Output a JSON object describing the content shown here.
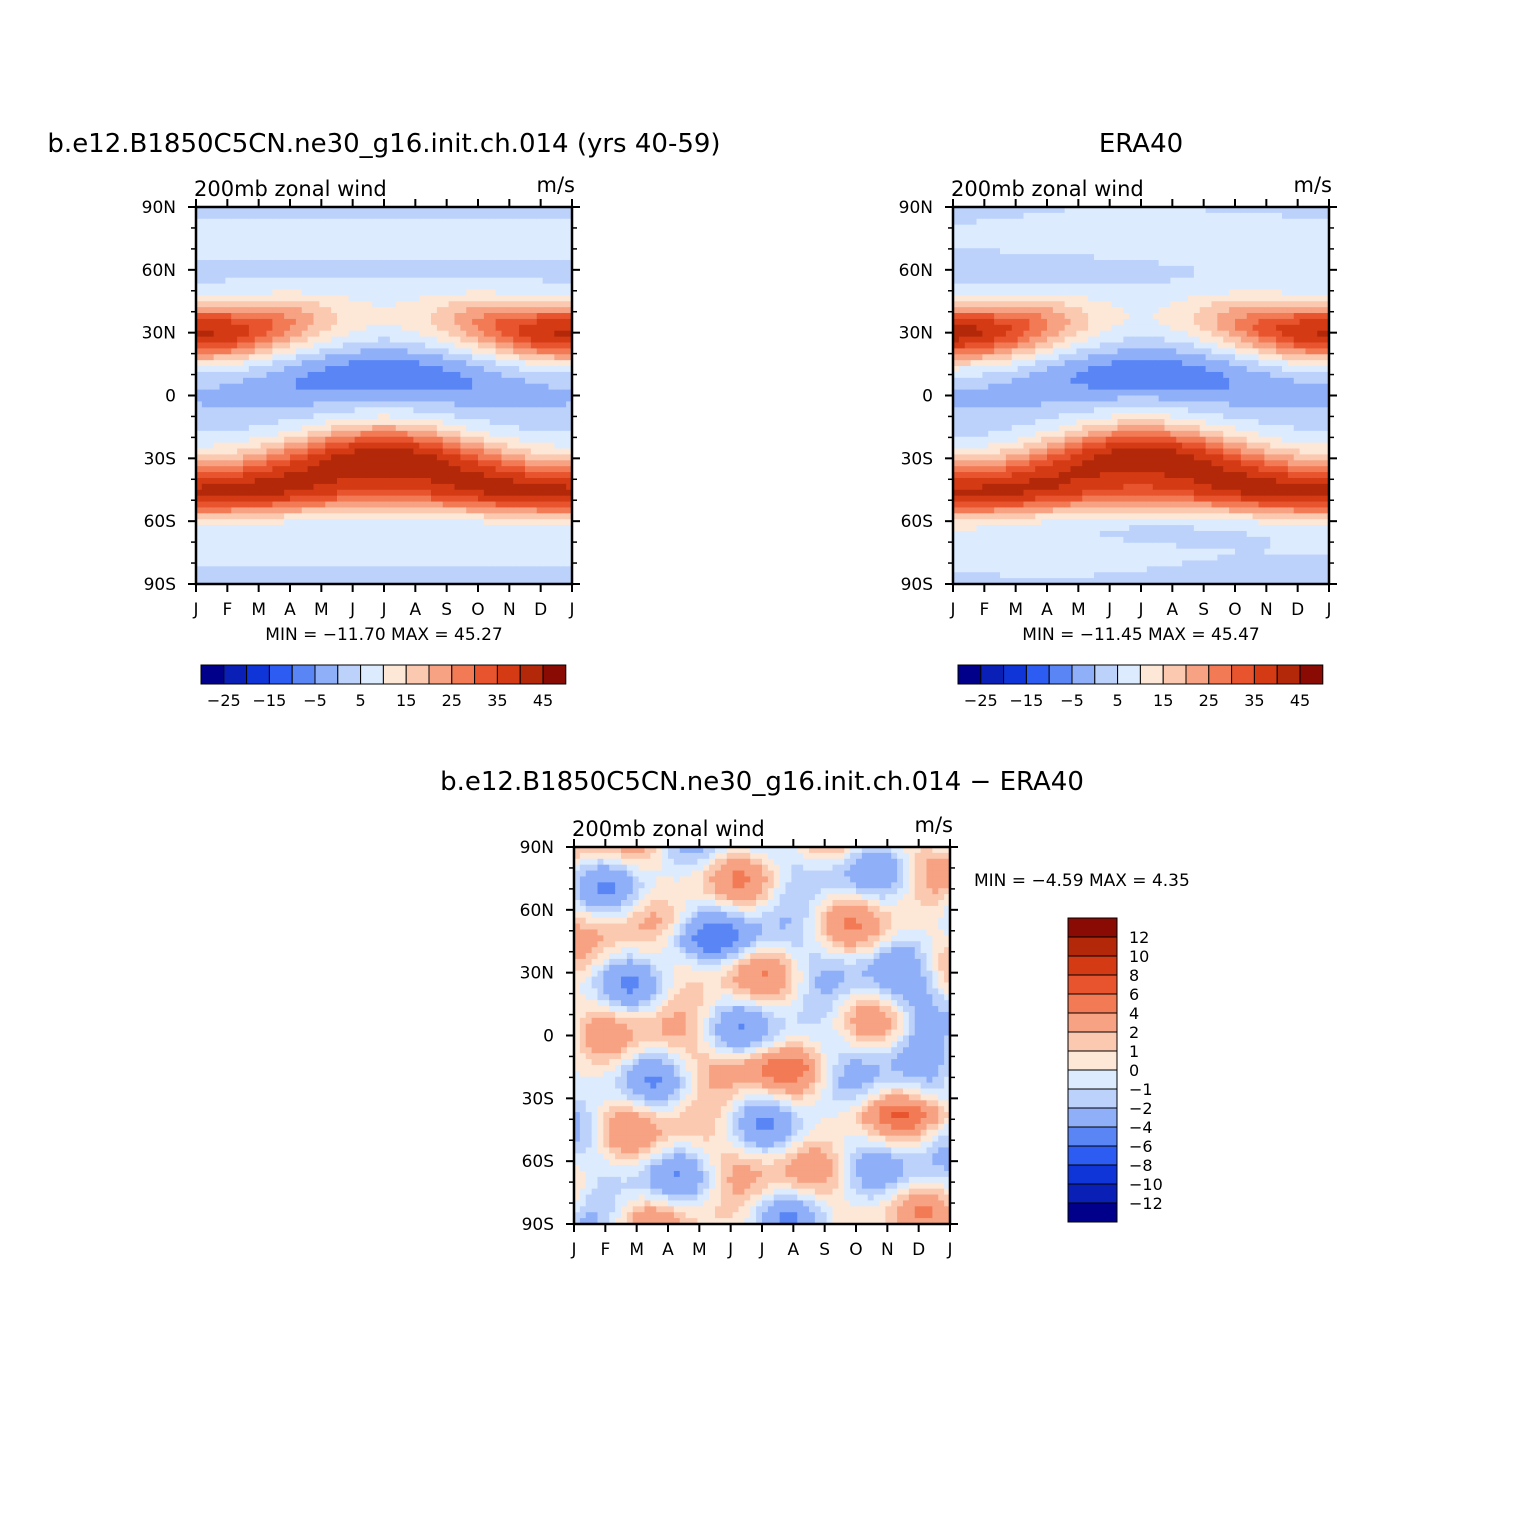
{
  "chart_data": [
    {
      "type": "heatmap",
      "title": "b.e12.B1850C5CN.ne30_g16.init.ch.014 (yrs 40-59)",
      "left_label": "200mb  zonal  wind",
      "units": "m/s",
      "x_ticks": [
        "J",
        "F",
        "M",
        "A",
        "M",
        "J",
        "J",
        "A",
        "S",
        "O",
        "N",
        "D",
        "J"
      ],
      "y_ticks": [
        "90N",
        "60N",
        "30N",
        "0",
        "30S",
        "60S",
        "90S"
      ],
      "y_values": [
        90,
        60,
        30,
        0,
        -30,
        -60,
        -90
      ],
      "min_max": "MIN = −11.70 MAX =   45.27",
      "colorbar_labels": [
        "−25",
        "−15",
        "−5",
        "5",
        "15",
        "25",
        "35",
        "45"
      ],
      "levels": [
        -30,
        -25,
        -20,
        -15,
        -10,
        -5,
        0,
        5,
        10,
        15,
        20,
        25,
        30,
        35,
        40,
        45
      ],
      "grid": false,
      "field_hint": "zonal wind (m/s) vs month and latitude; colours per level bins"
    },
    {
      "type": "heatmap",
      "title": "ERA40",
      "left_label": "200mb  zonal  wind",
      "units": "m/s",
      "x_ticks": [
        "J",
        "F",
        "M",
        "A",
        "M",
        "J",
        "J",
        "A",
        "S",
        "O",
        "N",
        "D",
        "J"
      ],
      "y_ticks": [
        "90N",
        "60N",
        "30N",
        "0",
        "30S",
        "60S",
        "90S"
      ],
      "y_values": [
        90,
        60,
        30,
        0,
        -30,
        -60,
        -90
      ],
      "min_max": "MIN = −11.45 MAX =   45.47",
      "colorbar_labels": [
        "−25",
        "−15",
        "−5",
        "5",
        "15",
        "25",
        "35",
        "45"
      ],
      "levels": [
        -30,
        -25,
        -20,
        -15,
        -10,
        -5,
        0,
        5,
        10,
        15,
        20,
        25,
        30,
        35,
        40,
        45
      ],
      "grid": false
    },
    {
      "type": "heatmap",
      "title": "b.e12.B1850C5CN.ne30_g16.init.ch.014 − ERA40",
      "left_label": "200mb  zonal  wind",
      "units": "m/s",
      "x_ticks": [
        "J",
        "F",
        "M",
        "A",
        "M",
        "J",
        "J",
        "A",
        "S",
        "O",
        "N",
        "D",
        "J"
      ],
      "y_ticks": [
        "90N",
        "60N",
        "30N",
        "0",
        "30S",
        "60S",
        "90S"
      ],
      "y_values": [
        90,
        60,
        30,
        0,
        -30,
        -60,
        -90
      ],
      "min_max": "MIN =    −4.59 MAX =     4.35",
      "colorbar_labels": [
        "12",
        "10",
        "8",
        "6",
        "4",
        "2",
        "1",
        "0",
        "−1",
        "−2",
        "−4",
        "−6",
        "−8",
        "−10",
        "−12"
      ],
      "levels": [
        -12,
        -10,
        -8,
        -6,
        -4,
        -2,
        -1,
        0,
        1,
        2,
        4,
        6,
        8,
        10,
        12
      ],
      "grid": false
    }
  ],
  "colors": {
    "scale16": [
      "#00008a",
      "#0a1fb5",
      "#0f35d8",
      "#2d5cf2",
      "#5a86f5",
      "#8fb0f8",
      "#bcd2fb",
      "#dcebfd",
      "#fde8d8",
      "#fbc8b0",
      "#f6a283",
      "#f27a55",
      "#e8542e",
      "#d43a14",
      "#b22808",
      "#8a0a04"
    ],
    "diff16": [
      "#00008a",
      "#0a1fb5",
      "#0f35d8",
      "#2d5cf2",
      "#5a86f5",
      "#8fb0f8",
      "#bcd2fb",
      "#dcebfd",
      "#fde8d8",
      "#fbc8b0",
      "#f6a283",
      "#f27a55",
      "#e8542e",
      "#d43a14",
      "#b22808",
      "#8a0a04"
    ]
  }
}
